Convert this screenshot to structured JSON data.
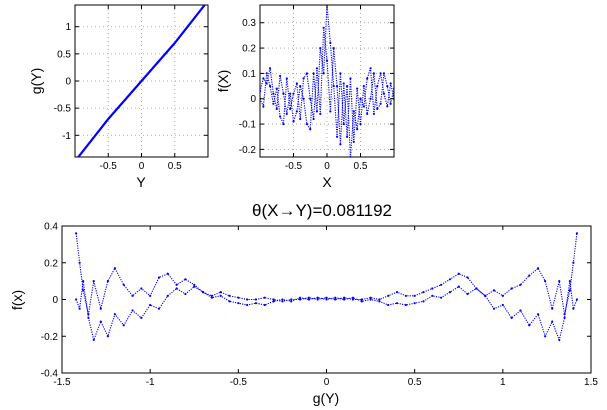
{
  "figure": {
    "background": "#ffffff"
  },
  "chart_data": [
    {
      "id": "gY",
      "type": "line",
      "xlabel": "Y",
      "ylabel": "g(Y)",
      "xlim": [
        -1,
        1
      ],
      "ylim": [
        -1.4,
        1.4
      ],
      "xticks": [
        "-0.5",
        "0",
        "0.5"
      ],
      "xtick_values": [
        -0.5,
        0,
        0.5
      ],
      "yticks": [
        "-1",
        "-0.5",
        "0",
        "0.5",
        "1"
      ],
      "ytick_values": [
        -1,
        -0.5,
        0,
        0.5,
        1
      ],
      "grid": true,
      "color": "#0000ff",
      "series": [
        {
          "x": [
            -0.95,
            -0.5,
            0,
            0.5,
            0.95
          ],
          "y": [
            -1.4,
            -0.7,
            0,
            0.7,
            1.4
          ]
        }
      ]
    },
    {
      "id": "fX",
      "type": "scatter",
      "xlabel": "X",
      "ylabel": "f(X)",
      "xlim": [
        -1,
        1
      ],
      "ylim": [
        -0.23,
        0.37
      ],
      "xticks": [
        "-0.5",
        "0",
        "0.5"
      ],
      "xtick_values": [
        -0.5,
        0,
        0.5
      ],
      "yticks": [
        "-0.2",
        "-0.1",
        "0",
        "0.1",
        "0.2",
        "0.3"
      ],
      "ytick_values": [
        -0.2,
        -0.1,
        0,
        0.1,
        0.2,
        0.3
      ],
      "grid": true,
      "color": "#0000ff",
      "series": [
        {
          "x": [
            -1.0,
            -0.95,
            -0.9,
            -0.85,
            -0.8,
            -0.75,
            -0.7,
            -0.65,
            -0.6,
            -0.55,
            -0.5,
            -0.45,
            -0.4,
            -0.35,
            -0.3,
            -0.25,
            -0.2,
            -0.15,
            -0.1,
            -0.05,
            0.0,
            0.05,
            0.1,
            0.15,
            0.2,
            0.25,
            0.3,
            0.35,
            0.4,
            0.45,
            0.5,
            0.55,
            0.6,
            0.65,
            0.7,
            0.75,
            0.8,
            0.85,
            0.9,
            0.95,
            1.0
          ],
          "y": [
            0.03,
            0.08,
            0.06,
            0.12,
            0.02,
            -0.04,
            0.09,
            0.02,
            -0.06,
            0.02,
            -0.09,
            -0.05,
            0.05,
            0.0,
            -0.1,
            -0.12,
            0.1,
            -0.05,
            0.2,
            0.1,
            0.37,
            0.22,
            0.05,
            -0.15,
            0.1,
            -0.1,
            0.05,
            -0.23,
            -0.05,
            -0.12,
            0.0,
            -0.03,
            0.08,
            0.12,
            -0.06,
            0.05,
            0.1,
            0.02,
            -0.03,
            0.06,
            0.0
          ]
        },
        {
          "x": [
            -1.0,
            -0.95,
            -0.9,
            -0.85,
            -0.8,
            -0.75,
            -0.7,
            -0.65,
            -0.6,
            -0.55,
            -0.5,
            -0.45,
            -0.4,
            -0.35,
            -0.3,
            -0.25,
            -0.2,
            -0.15,
            -0.1,
            -0.05,
            0.0,
            0.05,
            0.1,
            0.15,
            0.2,
            0.25,
            0.3,
            0.35,
            0.4,
            0.45,
            0.5,
            0.55,
            0.6,
            0.65,
            0.7,
            0.75,
            0.8,
            0.85,
            0.9,
            0.95,
            1.0
          ],
          "y": [
            0.0,
            -0.03,
            0.1,
            0.05,
            -0.02,
            0.04,
            -0.07,
            -0.1,
            0.08,
            -0.04,
            0.02,
            0.06,
            -0.08,
            0.08,
            0.1,
            0.0,
            -0.08,
            0.12,
            -0.06,
            0.28,
            0.15,
            -0.05,
            0.2,
            0.05,
            -0.18,
            0.06,
            -0.15,
            0.08,
            -0.17,
            0.04,
            -0.1,
            0.05,
            -0.06,
            0.0,
            0.1,
            -0.04,
            -0.02,
            0.1,
            0.05,
            -0.02,
            0.04
          ]
        }
      ]
    },
    {
      "id": "theta",
      "type": "scatter",
      "title": "θ(X→Y)=0.081192",
      "xlabel": "g(Y)",
      "ylabel": "f(x)",
      "xlim": [
        -1.5,
        1.5
      ],
      "ylim": [
        -0.4,
        0.4
      ],
      "xticks": [
        "-1.5",
        "-1",
        "-0.5",
        "0",
        "0.5",
        "1",
        "1.5"
      ],
      "xtick_values": [
        -1.5,
        -1,
        -0.5,
        0,
        0.5,
        1,
        1.5
      ],
      "yticks": [
        "-0.4",
        "-0.2",
        "0",
        "0.2",
        "0.4"
      ],
      "ytick_values": [
        -0.4,
        -0.2,
        0,
        0.2,
        0.4
      ],
      "grid": false,
      "color": "#0000ff",
      "series": [
        {
          "x": [
            -1.42,
            -1.4,
            -1.38,
            -1.35,
            -1.32,
            -1.28,
            -1.24,
            -1.2,
            -1.15,
            -1.1,
            -1.05,
            -1.0,
            -0.95,
            -0.9,
            -0.85,
            -0.8,
            -0.75,
            -0.7,
            -0.65,
            -0.6,
            -0.55,
            -0.5,
            -0.45,
            -0.4,
            -0.35,
            -0.3,
            -0.25,
            -0.2,
            -0.15,
            -0.1,
            -0.05,
            0.0,
            0.05,
            0.1,
            0.15,
            0.2,
            0.25,
            0.3,
            0.35,
            0.4,
            0.45,
            0.5,
            0.55,
            0.6,
            0.65,
            0.7,
            0.75,
            0.8,
            0.85,
            0.9,
            0.95,
            1.0,
            1.05,
            1.1,
            1.15,
            1.2,
            1.24,
            1.28,
            1.32,
            1.35,
            1.38,
            1.4,
            1.42
          ],
          "y": [
            0.36,
            0.2,
            0.05,
            -0.08,
            0.1,
            -0.05,
            0.1,
            0.17,
            0.08,
            0.02,
            0.06,
            0.02,
            0.12,
            0.14,
            0.08,
            0.11,
            0.08,
            0.04,
            0.02,
            0.04,
            0.02,
            0.01,
            0.0,
            0.0,
            0.01,
            0.0,
            -0.01,
            0.0,
            0.0,
            0.01,
            0.0,
            0.01,
            0.0,
            0.01,
            0.0,
            0.0,
            0.01,
            0.0,
            0.02,
            0.04,
            0.02,
            0.02,
            0.04,
            0.06,
            0.08,
            0.11,
            0.14,
            0.12,
            0.06,
            0.02,
            0.05,
            0.02,
            0.06,
            0.08,
            0.13,
            0.17,
            0.1,
            -0.05,
            0.1,
            -0.08,
            0.05,
            0.2,
            0.36
          ]
        },
        {
          "x": [
            -1.42,
            -1.4,
            -1.38,
            -1.35,
            -1.32,
            -1.28,
            -1.24,
            -1.2,
            -1.15,
            -1.1,
            -1.05,
            -1.0,
            -0.95,
            -0.9,
            -0.85,
            -0.8,
            -0.75,
            -0.7,
            -0.65,
            -0.6,
            -0.55,
            -0.5,
            -0.45,
            -0.4,
            -0.35,
            -0.3,
            -0.25,
            -0.2,
            -0.15,
            -0.1,
            -0.05,
            0.0,
            0.05,
            0.1,
            0.15,
            0.2,
            0.25,
            0.3,
            0.35,
            0.4,
            0.45,
            0.5,
            0.55,
            0.6,
            0.65,
            0.7,
            0.75,
            0.8,
            0.85,
            0.9,
            0.95,
            1.0,
            1.05,
            1.1,
            1.15,
            1.2,
            1.24,
            1.28,
            1.32,
            1.35,
            1.38,
            1.4,
            1.42
          ],
          "y": [
            0.0,
            -0.05,
            0.1,
            -0.1,
            -0.22,
            -0.12,
            -0.2,
            -0.08,
            -0.14,
            -0.06,
            -0.1,
            -0.03,
            -0.05,
            0.02,
            0.06,
            0.03,
            0.07,
            0.04,
            0.01,
            0.02,
            -0.01,
            -0.02,
            -0.03,
            -0.02,
            -0.03,
            -0.01,
            0.0,
            -0.01,
            0.01,
            0.0,
            0.01,
            0.0,
            0.01,
            0.0,
            0.01,
            -0.01,
            0.0,
            -0.01,
            -0.03,
            -0.02,
            -0.03,
            -0.02,
            -0.01,
            0.02,
            0.01,
            0.04,
            0.07,
            0.03,
            0.06,
            0.02,
            -0.05,
            -0.03,
            -0.1,
            -0.06,
            -0.14,
            -0.08,
            -0.2,
            -0.12,
            -0.22,
            -0.1,
            0.1,
            -0.05,
            0.0
          ]
        }
      ]
    }
  ]
}
